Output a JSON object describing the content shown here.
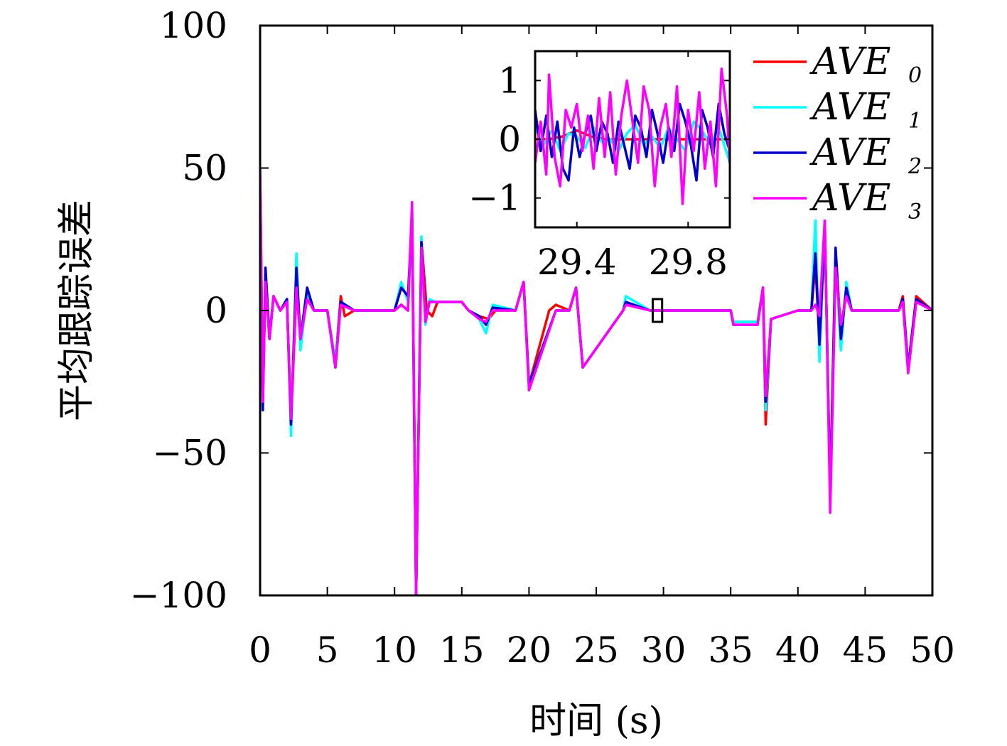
{
  "chart_data": [
    {
      "type": "line",
      "title": "",
      "xlabel": "时间 (s)",
      "ylabel": "平均跟踪误差",
      "xlim": [
        0,
        50
      ],
      "ylim": [
        -100,
        100
      ],
      "xticks": [
        "0",
        "5",
        "10",
        "15",
        "20",
        "25",
        "30",
        "35",
        "40",
        "45",
        "50"
      ],
      "yticks": [
        "100",
        "50",
        "0",
        "−50",
        "−100"
      ],
      "legend_position": "top-right",
      "grid": false,
      "zoom_box": {
        "x": [
          29.2,
          29.9
        ],
        "y": [
          -4,
          4
        ]
      },
      "series": [
        {
          "name": "AVE",
          "sub": "0",
          "color": "#ff0000",
          "x": [
            0,
            0.2,
            0.4,
            0.7,
            1.0,
            1.5,
            2.0,
            2.3,
            2.7,
            3.0,
            3.5,
            4.0,
            5.0,
            5.6,
            6.0,
            6.3,
            7,
            10,
            10.5,
            11.0,
            11.3,
            11.6,
            12.0,
            12.4,
            12.8,
            13.2,
            14,
            15,
            15.5,
            16.3,
            17.0,
            17.5,
            19.0,
            19.6,
            20,
            21.5,
            22,
            23,
            23.5,
            24,
            27,
            27.2,
            29,
            30,
            32,
            35.0,
            35.2,
            37.0,
            37.4,
            37.6,
            38,
            40,
            41.0,
            41.3,
            41.6,
            42.0,
            42.4,
            42.8,
            43.2,
            43.6,
            44,
            45,
            47.5,
            47.8,
            48.2,
            48.8,
            50
          ],
          "y": [
            48,
            -30,
            10,
            -10,
            5,
            0,
            3,
            -40,
            8,
            -10,
            5,
            0,
            0,
            -18,
            5,
            -2,
            0,
            0,
            2,
            0,
            35,
            -100,
            25,
            0,
            -2,
            3,
            3,
            3,
            0,
            -2,
            -3,
            0,
            0,
            10,
            -26,
            0,
            2,
            0,
            8,
            -20,
            0,
            3,
            0,
            0,
            0,
            0,
            -4,
            -4,
            8,
            -40,
            -3,
            0,
            0,
            16,
            -10,
            30,
            -65,
            20,
            -8,
            8,
            0,
            0,
            0,
            5,
            -20,
            5,
            0
          ]
        },
        {
          "name": "AVE",
          "sub": "1",
          "color": "#00ffff",
          "x": [
            0,
            0.2,
            0.4,
            0.7,
            1.0,
            1.5,
            2.0,
            2.3,
            2.7,
            3.0,
            3.5,
            4.0,
            5.0,
            5.6,
            6.0,
            7,
            10,
            10.5,
            11.0,
            11.3,
            11.6,
            12.0,
            12.3,
            12.6,
            13.0,
            14,
            15,
            15.5,
            16.3,
            16.8,
            17.3,
            19.0,
            19.6,
            20,
            22,
            23,
            23.5,
            24,
            27,
            27.2,
            29,
            32,
            35.0,
            35.2,
            37.0,
            37.4,
            37.6,
            38,
            40,
            41.0,
            41.3,
            41.6,
            42.0,
            42.4,
            42.8,
            43.2,
            43.6,
            44,
            45,
            47.5,
            47.8,
            48.2,
            48.8,
            50
          ],
          "y": [
            45,
            -28,
            12,
            -8,
            5,
            0,
            4,
            -44,
            20,
            -14,
            6,
            0,
            0,
            -18,
            3,
            0,
            0,
            10,
            3,
            30,
            -100,
            26,
            -5,
            4,
            3,
            3,
            3,
            0,
            -3,
            -8,
            2,
            0,
            10,
            -26,
            0,
            0,
            8,
            -20,
            0,
            5,
            0,
            0,
            0,
            -4,
            -4,
            8,
            -35,
            -3,
            0,
            0,
            32,
            -18,
            28,
            -65,
            18,
            -14,
            10,
            0,
            0,
            0,
            3,
            -20,
            3,
            0
          ]
        },
        {
          "name": "AVE",
          "sub": "2",
          "color": "#0000cc",
          "x": [
            0,
            0.2,
            0.4,
            0.7,
            1.0,
            1.5,
            2.0,
            2.3,
            2.7,
            3.0,
            3.5,
            4.0,
            5.0,
            5.6,
            6.0,
            7,
            10,
            10.5,
            11.0,
            11.3,
            11.6,
            12.0,
            12.3,
            12.6,
            13.0,
            14,
            15,
            15.5,
            16.3,
            16.8,
            17.3,
            19.0,
            19.6,
            20,
            22,
            23,
            23.5,
            24,
            27,
            27.2,
            29,
            32,
            35.0,
            35.2,
            37.0,
            37.4,
            37.6,
            38,
            40,
            41.0,
            41.3,
            41.6,
            42.0,
            42.4,
            42.8,
            43.2,
            43.6,
            44,
            45,
            47.5,
            47.8,
            48.2,
            48.8,
            50
          ],
          "y": [
            46,
            -35,
            15,
            -10,
            5,
            0,
            4,
            -40,
            15,
            -10,
            8,
            0,
            0,
            -20,
            3,
            0,
            0,
            8,
            5,
            33,
            -100,
            24,
            -3,
            3,
            3,
            3,
            3,
            0,
            -2,
            -5,
            1,
            0,
            10,
            -26,
            0,
            0,
            8,
            -20,
            0,
            3,
            0,
            0,
            0,
            -5,
            -5,
            8,
            -32,
            -3,
            0,
            0,
            20,
            -12,
            30,
            -65,
            22,
            -10,
            8,
            0,
            0,
            0,
            4,
            -20,
            4,
            0
          ]
        },
        {
          "name": "AVE",
          "sub": "3",
          "color": "#ff00ff",
          "x": [
            0,
            0.2,
            0.4,
            0.7,
            1.0,
            1.5,
            2.0,
            2.3,
            2.7,
            3.0,
            3.5,
            4.0,
            5.0,
            5.6,
            6.0,
            7,
            10,
            10.5,
            11.0,
            11.3,
            11.6,
            12.0,
            12.3,
            12.6,
            13.0,
            14,
            15,
            15.5,
            16.3,
            16.8,
            17.3,
            19.0,
            19.6,
            20,
            22,
            23,
            23.5,
            24,
            27,
            27.2,
            29,
            32,
            35.0,
            35.2,
            37.0,
            37.4,
            37.6,
            38,
            40,
            41.0,
            41.3,
            41.6,
            42.0,
            42.4,
            42.8,
            43.2,
            43.6,
            44,
            45,
            47.5,
            47.8,
            48.2,
            48.8,
            50
          ],
          "y": [
            50,
            -32,
            10,
            -10,
            5,
            0,
            3,
            -38,
            8,
            -10,
            4,
            0,
            0,
            -20,
            2,
            0,
            0,
            2,
            0,
            38,
            -100,
            22,
            -4,
            3,
            3,
            3,
            3,
            0,
            -3,
            -4,
            0,
            0,
            10,
            -28,
            0,
            0,
            8,
            -20,
            0,
            2,
            0,
            0,
            0,
            -5,
            -5,
            8,
            -30,
            -3,
            0,
            0,
            2,
            -2,
            32,
            -71,
            15,
            -5,
            5,
            0,
            0,
            0,
            3,
            -22,
            3,
            0
          ]
        }
      ]
    },
    {
      "type": "line",
      "title": "",
      "xlabel": "",
      "ylabel": "",
      "xlim": [
        29.25,
        29.95
      ],
      "ylim": [
        -1.5,
        1.5
      ],
      "xticks": [
        "29.4",
        "29.8"
      ],
      "yticks": [
        "1",
        "0",
        "−1"
      ],
      "series": [
        {
          "name": "AVE",
          "sub": "0",
          "color": "#ff0000",
          "x": [
            29.25,
            29.3,
            29.35,
            29.4,
            29.45,
            29.5,
            29.55,
            29.6,
            29.65,
            29.7,
            29.75,
            29.8,
            29.85,
            29.9,
            29.95
          ],
          "y": [
            0.0,
            0.0,
            0.05,
            0.15,
            0.05,
            0.0,
            0.0,
            0.0,
            0.0,
            0.0,
            0.0,
            0.0,
            0.0,
            0.0,
            0.0
          ]
        },
        {
          "name": "AVE",
          "sub": "1",
          "color": "#00ffff",
          "x": [
            29.25,
            29.28,
            29.31,
            29.34,
            29.37,
            29.4,
            29.43,
            29.46,
            29.49,
            29.52,
            29.55,
            29.58,
            29.61,
            29.64,
            29.67,
            29.7,
            29.73,
            29.76,
            29.79,
            29.82,
            29.85,
            29.88,
            29.91,
            29.95
          ],
          "y": [
            0.2,
            -0.1,
            0.15,
            -0.2,
            0.1,
            0.05,
            -0.15,
            0.2,
            -0.05,
            0.0,
            -0.2,
            0.1,
            0.25,
            -0.1,
            0.05,
            -0.15,
            0.2,
            0.0,
            -0.2,
            0.3,
            0.15,
            -0.1,
            0.2,
            -0.4
          ]
        },
        {
          "name": "AVE",
          "sub": "2",
          "color": "#0000cc",
          "x": [
            29.25,
            29.27,
            29.29,
            29.31,
            29.33,
            29.35,
            29.37,
            29.39,
            29.41,
            29.43,
            29.45,
            29.47,
            29.49,
            29.51,
            29.53,
            29.55,
            29.57,
            29.59,
            29.61,
            29.63,
            29.65,
            29.67,
            29.69,
            29.71,
            29.73,
            29.75,
            29.77,
            29.79,
            29.81,
            29.83,
            29.85,
            29.87,
            29.89,
            29.91,
            29.93,
            29.95
          ],
          "y": [
            0.5,
            -0.2,
            0.4,
            -0.3,
            0.3,
            -0.5,
            -0.7,
            0.2,
            -0.3,
            0.1,
            0.4,
            -0.2,
            0.3,
            0.1,
            -0.4,
            0.3,
            -0.1,
            -0.5,
            0.4,
            0.2,
            -0.3,
            0.5,
            0.1,
            -0.4,
            0.2,
            -0.2,
            0.6,
            0.3,
            -0.1,
            -0.7,
            0.5,
            0.2,
            -0.3,
            0.6,
            0.1,
            -0.2
          ]
        },
        {
          "name": "AVE",
          "sub": "3",
          "color": "#ff00ff",
          "x": [
            29.25,
            29.27,
            29.29,
            29.3,
            29.32,
            29.34,
            29.36,
            29.38,
            29.4,
            29.42,
            29.44,
            29.46,
            29.48,
            29.5,
            29.52,
            29.54,
            29.56,
            29.58,
            29.6,
            29.62,
            29.64,
            29.66,
            29.68,
            29.7,
            29.72,
            29.74,
            29.76,
            29.78,
            29.8,
            29.82,
            29.84,
            29.86,
            29.88,
            29.9,
            29.92,
            29.94,
            29.95
          ],
          "y": [
            -0.4,
            0.3,
            -0.6,
            1.1,
            -0.3,
            -0.8,
            0.5,
            0.2,
            0.6,
            -0.2,
            0.4,
            -0.5,
            0.7,
            -0.3,
            0.8,
            -0.6,
            0.4,
            1.0,
            0.3,
            -0.4,
            0.9,
            0.5,
            -0.8,
            0.2,
            0.6,
            -0.3,
            0.9,
            -1.1,
            0.5,
            -0.2,
            0.8,
            -0.5,
            0.3,
            -0.8,
            1.2,
            0.4,
            -0.4
          ]
        }
      ]
    }
  ]
}
